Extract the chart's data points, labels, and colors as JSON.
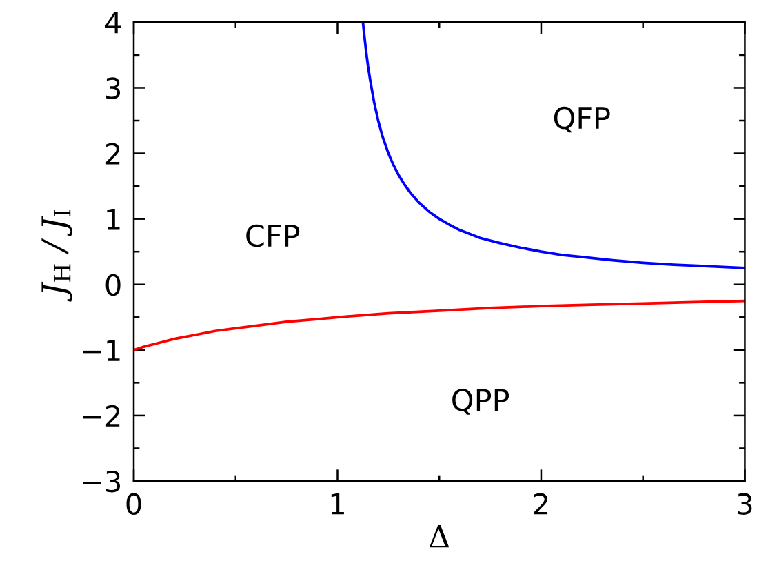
{
  "chart_data": {
    "type": "line",
    "xlabel": "Δ",
    "ylabel": "J$_{H}$ / J$_{I}$",
    "xlim": [
      0,
      3
    ],
    "ylim": [
      -3,
      4
    ],
    "xticks": [
      0,
      1,
      2,
      3
    ],
    "yticks": [
      {
        "value": -3,
        "label": "−3"
      },
      {
        "value": -2,
        "label": "−2"
      },
      {
        "value": -1,
        "label": "−1"
      },
      0,
      1,
      2,
      3,
      4
    ],
    "grid": false,
    "marker": "none",
    "line_style": "solid",
    "series": [
      {
        "color": "#0000ff",
        "x": [
          1.125,
          1.13,
          1.14,
          1.15,
          1.16,
          1.18,
          1.2,
          1.22,
          1.25,
          1.275,
          1.3,
          1.33,
          1.36,
          1.4,
          1.45,
          1.5,
          1.55,
          1.6,
          1.7,
          1.8,
          1.9,
          2.0,
          2.1,
          2.2,
          2.35,
          2.5,
          2.65,
          2.8,
          3.0
        ],
        "values": [
          4.0,
          3.85,
          3.57,
          3.33,
          3.13,
          2.78,
          2.5,
          2.27,
          2.0,
          1.82,
          1.67,
          1.52,
          1.39,
          1.25,
          1.11,
          1.0,
          0.91,
          0.83,
          0.71,
          0.63,
          0.56,
          0.5,
          0.45,
          0.42,
          0.37,
          0.33,
          0.3,
          0.28,
          0.25
        ]
      },
      {
        "color": "#ff0000",
        "x": [
          0,
          0.05,
          0.1,
          0.15,
          0.2,
          0.3,
          0.4,
          0.5,
          0.6,
          0.75,
          0.9,
          1.0,
          1.25,
          1.5,
          1.75,
          2.0,
          2.25,
          2.5,
          2.75,
          3.0
        ],
        "values": [
          -1.0,
          -0.95,
          -0.91,
          -0.87,
          -0.83,
          -0.77,
          -0.71,
          -0.67,
          -0.63,
          -0.57,
          -0.53,
          -0.5,
          -0.44,
          -0.4,
          -0.36,
          -0.33,
          -0.31,
          -0.29,
          -0.27,
          -0.25
        ]
      }
    ],
    "annotations": [
      "CFP",
      "QFP",
      "QPP"
    ]
  }
}
